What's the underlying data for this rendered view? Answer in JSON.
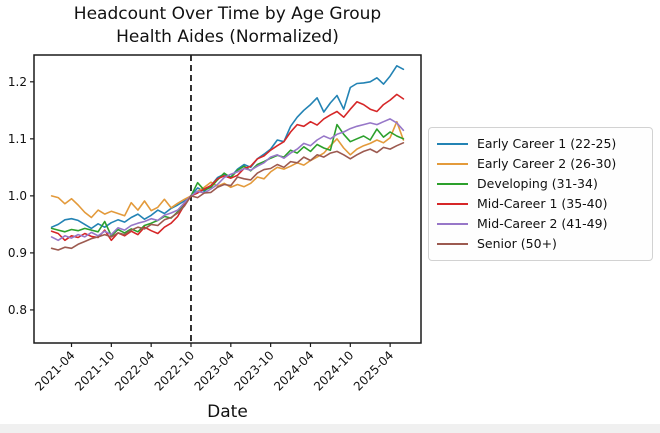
{
  "figure": {
    "title_line1": "Headcount Over Time by Age Group",
    "title_line2": "Health Aides (Normalized)",
    "xlabel": "Date"
  },
  "chart_data": {
    "type": "line",
    "title": "Headcount Over Time by Age Group\nHealth Aides (Normalized)",
    "xlabel": "Date",
    "ylabel": "",
    "grid": false,
    "legend_position": "right-outside",
    "frame_color": "#1a1a1a",
    "ylim": [
      0.742,
      1.247
    ],
    "yticks": [
      0.8,
      0.9,
      1.0,
      1.1,
      1.2
    ],
    "xticks": [
      "2021-04",
      "2021-10",
      "2022-04",
      "2022-10",
      "2023-04",
      "2023-10",
      "2024-04",
      "2024-10",
      "2025-04"
    ],
    "vline_x": "2022-10",
    "vline_style": "dashed",
    "vline_color": "#000000",
    "x": [
      "2021-01",
      "2021-02",
      "2021-03",
      "2021-04",
      "2021-05",
      "2021-06",
      "2021-07",
      "2021-08",
      "2021-09",
      "2021-10",
      "2021-11",
      "2021-12",
      "2022-01",
      "2022-02",
      "2022-03",
      "2022-04",
      "2022-05",
      "2022-06",
      "2022-07",
      "2022-08",
      "2022-09",
      "2022-10",
      "2022-11",
      "2022-12",
      "2023-01",
      "2023-02",
      "2023-03",
      "2023-04",
      "2023-05",
      "2023-06",
      "2023-07",
      "2023-08",
      "2023-09",
      "2023-10",
      "2023-11",
      "2023-12",
      "2024-01",
      "2024-02",
      "2024-03",
      "2024-04",
      "2024-05",
      "2024-06",
      "2024-07",
      "2024-08",
      "2024-09",
      "2024-10",
      "2024-11",
      "2024-12",
      "2025-01",
      "2025-02",
      "2025-03",
      "2025-04",
      "2025-05",
      "2025-06"
    ],
    "series": [
      {
        "name": "Early Career 1 (22-25)",
        "color": "#2383b4",
        "values": [
          0.945,
          0.95,
          0.958,
          0.96,
          0.957,
          0.95,
          0.943,
          0.951,
          0.945,
          0.953,
          0.958,
          0.954,
          0.962,
          0.968,
          0.959,
          0.966,
          0.975,
          0.969,
          0.978,
          0.984,
          0.991,
          1.0,
          1.014,
          1.008,
          1.018,
          1.032,
          1.038,
          1.033,
          1.047,
          1.055,
          1.05,
          1.065,
          1.073,
          1.082,
          1.098,
          1.095,
          1.122,
          1.138,
          1.15,
          1.16,
          1.172,
          1.147,
          1.163,
          1.176,
          1.152,
          1.19,
          1.197,
          1.198,
          1.2,
          1.207,
          1.196,
          1.21,
          1.228,
          1.222
        ]
      },
      {
        "name": "Early Career 2 (26-30)",
        "color": "#e39a3b",
        "values": [
          1.0,
          0.997,
          0.986,
          0.995,
          0.984,
          0.971,
          0.962,
          0.975,
          0.968,
          0.973,
          0.969,
          0.965,
          0.988,
          0.975,
          0.991,
          0.974,
          0.98,
          0.994,
          0.979,
          0.987,
          0.994,
          1.0,
          1.008,
          1.015,
          1.024,
          1.017,
          1.022,
          1.015,
          1.02,
          1.016,
          1.022,
          1.033,
          1.03,
          1.042,
          1.05,
          1.047,
          1.052,
          1.058,
          1.054,
          1.062,
          1.068,
          1.075,
          1.088,
          1.1,
          1.084,
          1.072,
          1.082,
          1.088,
          1.092,
          1.098,
          1.093,
          1.102,
          1.13,
          1.098
        ]
      },
      {
        "name": "Developing (31-34)",
        "color": "#2ca02c",
        "values": [
          0.943,
          0.94,
          0.937,
          0.941,
          0.939,
          0.943,
          0.94,
          0.937,
          0.955,
          0.93,
          0.941,
          0.935,
          0.942,
          0.937,
          0.948,
          0.952,
          0.957,
          0.964,
          0.961,
          0.972,
          0.985,
          1.0,
          1.023,
          1.01,
          1.015,
          1.028,
          1.04,
          1.032,
          1.045,
          1.052,
          1.044,
          1.055,
          1.06,
          1.066,
          1.071,
          1.068,
          1.08,
          1.075,
          1.086,
          1.078,
          1.09,
          1.084,
          1.08,
          1.125,
          1.108,
          1.095,
          1.1,
          1.105,
          1.098,
          1.117,
          1.103,
          1.112,
          1.105,
          1.1
        ]
      },
      {
        "name": "Mid-Career 1 (35-40)",
        "color": "#d62728",
        "values": [
          0.938,
          0.934,
          0.922,
          0.93,
          0.927,
          0.934,
          0.929,
          0.927,
          0.94,
          0.922,
          0.935,
          0.93,
          0.938,
          0.932,
          0.945,
          0.939,
          0.934,
          0.945,
          0.952,
          0.964,
          0.984,
          1.0,
          1.005,
          1.012,
          1.018,
          1.03,
          1.035,
          1.031,
          1.036,
          1.048,
          1.052,
          1.065,
          1.07,
          1.08,
          1.088,
          1.095,
          1.112,
          1.125,
          1.122,
          1.13,
          1.124,
          1.135,
          1.142,
          1.148,
          1.138,
          1.152,
          1.165,
          1.16,
          1.152,
          1.148,
          1.16,
          1.168,
          1.178,
          1.17
        ]
      },
      {
        "name": "Mid-Career 2 (41-49)",
        "color": "#9777c8",
        "values": [
          0.928,
          0.922,
          0.93,
          0.926,
          0.932,
          0.928,
          0.936,
          0.93,
          0.938,
          0.932,
          0.944,
          0.94,
          0.948,
          0.952,
          0.955,
          0.96,
          0.957,
          0.966,
          0.97,
          0.975,
          0.988,
          1.0,
          1.008,
          1.005,
          1.012,
          1.02,
          1.032,
          1.038,
          1.042,
          1.048,
          1.045,
          1.052,
          1.058,
          1.068,
          1.072,
          1.066,
          1.075,
          1.082,
          1.092,
          1.088,
          1.098,
          1.105,
          1.1,
          1.108,
          1.112,
          1.118,
          1.122,
          1.125,
          1.128,
          1.125,
          1.13,
          1.135,
          1.128,
          1.115
        ]
      },
      {
        "name": "Senior (50+)",
        "color": "#9c5a50",
        "values": [
          0.908,
          0.905,
          0.91,
          0.908,
          0.915,
          0.92,
          0.925,
          0.928,
          0.932,
          0.928,
          0.935,
          0.932,
          0.94,
          0.945,
          0.942,
          0.95,
          0.948,
          0.958,
          0.962,
          0.97,
          0.982,
          1.0,
          0.997,
          1.005,
          1.006,
          1.015,
          1.02,
          1.018,
          1.033,
          1.03,
          1.028,
          1.04,
          1.046,
          1.048,
          1.055,
          1.05,
          1.06,
          1.058,
          1.068,
          1.062,
          1.072,
          1.068,
          1.075,
          1.078,
          1.072,
          1.065,
          1.072,
          1.078,
          1.082,
          1.076,
          1.085,
          1.082,
          1.088,
          1.093
        ]
      }
    ]
  }
}
